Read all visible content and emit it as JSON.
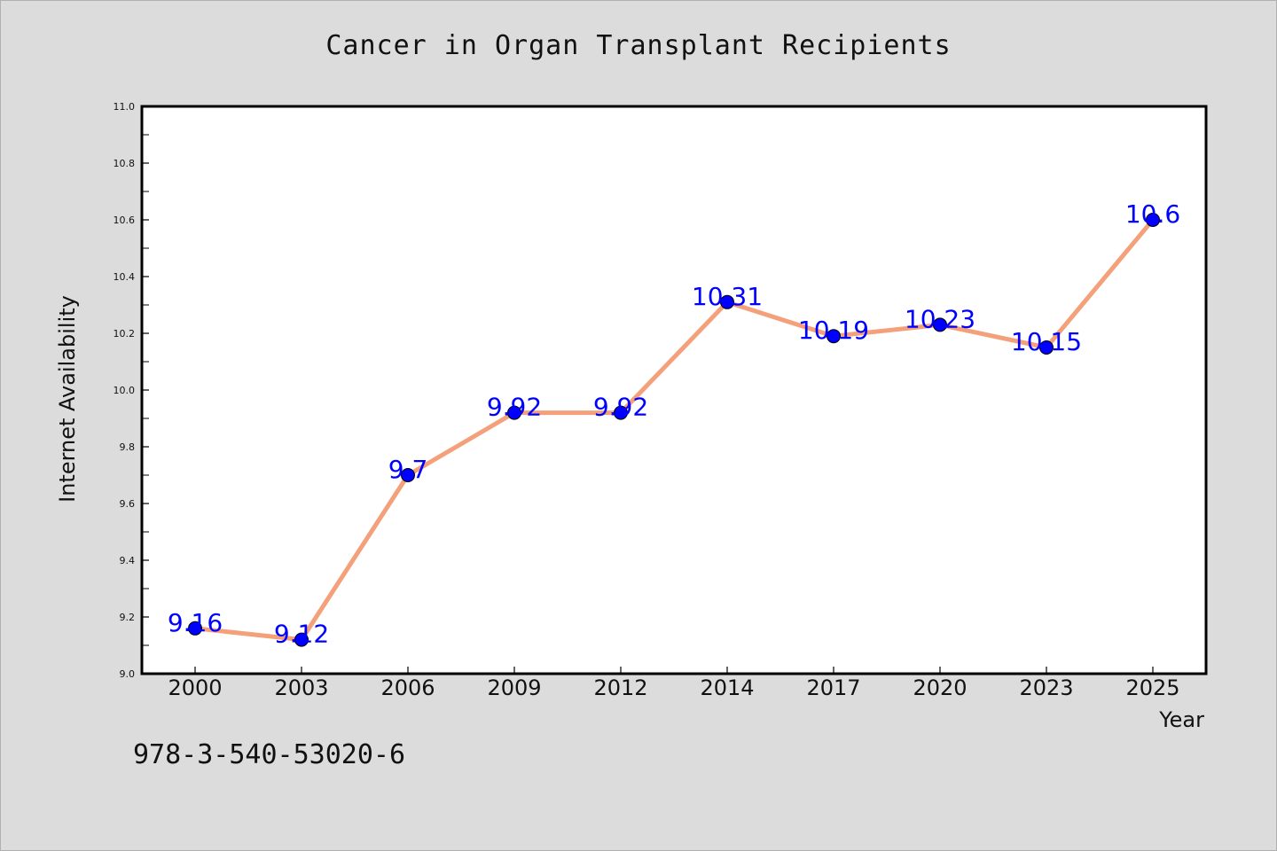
{
  "title": "Cancer in Organ Transplant Recipients",
  "footer_code": "978-3-540-53020-6",
  "colors": {
    "background": "#dcdcdc",
    "line": "#f4a07a",
    "marker": "#0000ff",
    "label": "#0000ff"
  },
  "chart_data": {
    "type": "line",
    "title": "Cancer in Organ Transplant Recipients",
    "xlabel": "Year",
    "ylabel": "Internet Availability",
    "categories": [
      "2000",
      "2003",
      "2006",
      "2009",
      "2012",
      "2014",
      "2017",
      "2020",
      "2023",
      "2025"
    ],
    "values": [
      9.16,
      9.12,
      9.7,
      9.92,
      9.92,
      10.31,
      10.19,
      10.23,
      10.15,
      10.6
    ],
    "data_labels": [
      "9.16",
      "9.12",
      "9.7",
      "9.92",
      "9.92",
      "10.31",
      "10.19",
      "10.23",
      "10.15",
      "10.6"
    ],
    "ylim": [
      9.0,
      11.0
    ],
    "yticks": [
      "9.0",
      "9.2",
      "9.4",
      "9.6",
      "9.8",
      "10.0",
      "10.2",
      "10.4",
      "10.6",
      "10.8",
      "11.0"
    ],
    "grid": false,
    "legend": "none"
  }
}
